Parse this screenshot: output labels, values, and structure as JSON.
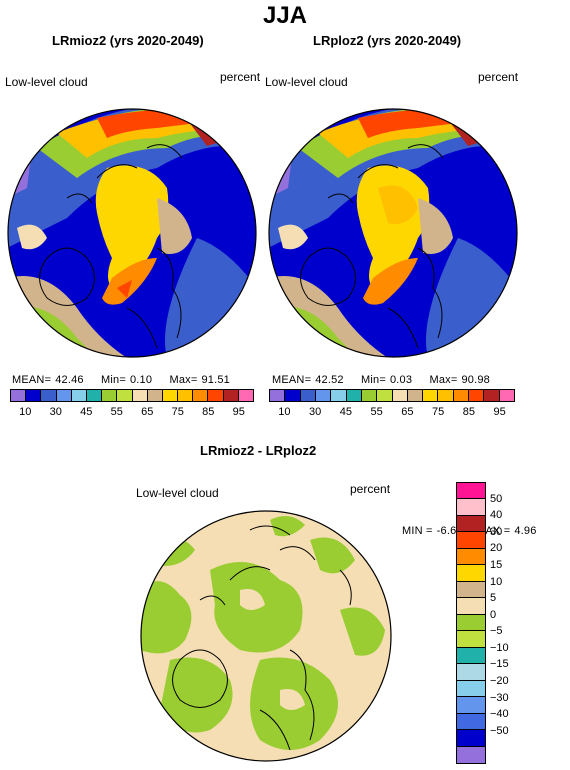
{
  "figure": {
    "season": "JJA"
  },
  "panels": [
    {
      "title": "LRmioz2 (yrs 2020-2049)",
      "variable": "Low-level cloud",
      "units": "percent",
      "stats": {
        "mean_label": "MEAN=",
        "mean": "42.46",
        "min_label": "Min=",
        "min": "0.10",
        "max_label": "Max=",
        "max": "91.51"
      }
    },
    {
      "title": "LRploz2 (yrs 2020-2049)",
      "variable": "Low-level cloud",
      "units": "percent",
      "stats": {
        "mean_label": "MEAN=",
        "mean": "42.52",
        "min_label": "Min=",
        "min": "0.03",
        "max_label": "Max=",
        "max": "90.98"
      }
    },
    {
      "title": "LRmioz2 - LRploz2",
      "variable": "Low-level cloud",
      "units": "percent",
      "stats": {
        "min_label": "MIN =",
        "min": "-6.68",
        "max_label": "MAX =",
        "max": "4.96"
      }
    }
  ],
  "colorbar_absolute": {
    "colors": [
      "#9370db",
      "#0000cd",
      "#3a5fcd",
      "#6495ed",
      "#87ceeb",
      "#20b2aa",
      "#9acd32",
      "#c0e040",
      "#f5deb3",
      "#d2b48c",
      "#ffd700",
      "#ffc000",
      "#ff8c00",
      "#ff4500",
      "#b22222",
      "#ff69b4"
    ],
    "labels": [
      "10",
      "30",
      "45",
      "55",
      "65",
      "75",
      "85",
      "95"
    ]
  },
  "colorbar_difference": {
    "colors": [
      "#ff1493",
      "#ffc0cb",
      "#b22222",
      "#ff4500",
      "#ff8c00",
      "#ffd700",
      "#d2b48c",
      "#f5deb3",
      "#9acd32",
      "#c0e040",
      "#20b2aa",
      "#add8e6",
      "#87ceeb",
      "#6495ed",
      "#4169e1",
      "#0000cd",
      "#9370db"
    ],
    "labels": [
      "50",
      "40",
      "30",
      "20",
      "15",
      "10",
      "5",
      "0",
      "−5",
      "−10",
      "−15",
      "−20",
      "−30",
      "−40",
      "−50"
    ]
  }
}
